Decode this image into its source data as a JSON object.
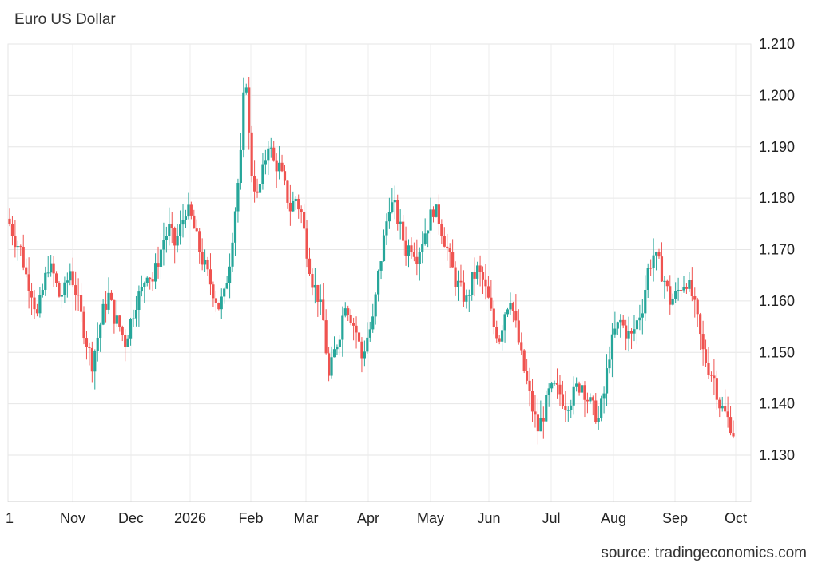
{
  "chart_data": {
    "type": "candlestick",
    "title": "Euro US Dollar",
    "source": "source: tradingeconomics.com",
    "ylim": [
      1.121,
      1.21
    ],
    "y_ticks": [
      "1.130",
      "1.140",
      "1.150",
      "1.160",
      "1.170",
      "1.180",
      "1.190",
      "1.200",
      "1.210"
    ],
    "x_ticks": [
      "1",
      "Nov",
      "Dec",
      "2026",
      "Feb",
      "Mar",
      "Apr",
      "May",
      "Jun",
      "Jul",
      "Aug",
      "Sep",
      "Oct"
    ],
    "grid": true,
    "up_color": "#26a69a",
    "down_color": "#ef5350",
    "close_path": [
      [
        0,
        1.175
      ],
      [
        2,
        1.172
      ],
      [
        4,
        1.17
      ],
      [
        6,
        1.165
      ],
      [
        8,
        1.162
      ],
      [
        10,
        1.157
      ],
      [
        12,
        1.162
      ],
      [
        14,
        1.167
      ],
      [
        16,
        1.165
      ],
      [
        18,
        1.161
      ],
      [
        20,
        1.162
      ],
      [
        22,
        1.166
      ],
      [
        24,
        1.162
      ],
      [
        26,
        1.157
      ],
      [
        28,
        1.152
      ],
      [
        30,
        1.148
      ],
      [
        32,
        1.153
      ],
      [
        34,
        1.158
      ],
      [
        36,
        1.161
      ],
      [
        38,
        1.157
      ],
      [
        40,
        1.155
      ],
      [
        42,
        1.152
      ],
      [
        44,
        1.156
      ],
      [
        46,
        1.16
      ],
      [
        48,
        1.162
      ],
      [
        50,
        1.166
      ],
      [
        52,
        1.164
      ],
      [
        54,
        1.168
      ],
      [
        56,
        1.172
      ],
      [
        58,
        1.174
      ],
      [
        60,
        1.171
      ],
      [
        62,
        1.174
      ],
      [
        64,
        1.178
      ],
      [
        66,
        1.176
      ],
      [
        68,
        1.172
      ],
      [
        70,
        1.168
      ],
      [
        72,
        1.165
      ],
      [
        74,
        1.162
      ],
      [
        76,
        1.159
      ],
      [
        78,
        1.161
      ],
      [
        80,
        1.168
      ],
      [
        82,
        1.178
      ],
      [
        84,
        1.188
      ],
      [
        85,
        1.199
      ],
      [
        86,
        1.203
      ],
      [
        87,
        1.192
      ],
      [
        88,
        1.185
      ],
      [
        90,
        1.18
      ],
      [
        92,
        1.185
      ],
      [
        94,
        1.191
      ],
      [
        96,
        1.187
      ],
      [
        98,
        1.186
      ],
      [
        100,
        1.182
      ],
      [
        102,
        1.178
      ],
      [
        104,
        1.18
      ],
      [
        106,
        1.177
      ],
      [
        108,
        1.17
      ],
      [
        110,
        1.164
      ],
      [
        112,
        1.161
      ],
      [
        114,
        1.156
      ],
      [
        116,
        1.145
      ],
      [
        118,
        1.15
      ],
      [
        120,
        1.154
      ],
      [
        122,
        1.16
      ],
      [
        124,
        1.157
      ],
      [
        126,
        1.154
      ],
      [
        128,
        1.149
      ],
      [
        130,
        1.153
      ],
      [
        132,
        1.156
      ],
      [
        134,
        1.165
      ],
      [
        136,
        1.172
      ],
      [
        138,
        1.179
      ],
      [
        140,
        1.178
      ],
      [
        142,
        1.174
      ],
      [
        144,
        1.17
      ],
      [
        146,
        1.171
      ],
      [
        148,
        1.169
      ],
      [
        150,
        1.172
      ],
      [
        152,
        1.175
      ],
      [
        154,
        1.178
      ],
      [
        156,
        1.176
      ],
      [
        158,
        1.172
      ],
      [
        160,
        1.168
      ],
      [
        162,
        1.164
      ],
      [
        164,
        1.162
      ],
      [
        166,
        1.16
      ],
      [
        168,
        1.164
      ],
      [
        170,
        1.166
      ],
      [
        172,
        1.164
      ],
      [
        174,
        1.16
      ],
      [
        176,
        1.155
      ],
      [
        178,
        1.153
      ],
      [
        180,
        1.158
      ],
      [
        182,
        1.161
      ],
      [
        184,
        1.155
      ],
      [
        186,
        1.149
      ],
      [
        188,
        1.144
      ],
      [
        190,
        1.139
      ],
      [
        192,
        1.135
      ],
      [
        194,
        1.138
      ],
      [
        196,
        1.142
      ],
      [
        198,
        1.143
      ],
      [
        200,
        1.142
      ],
      [
        202,
        1.14
      ],
      [
        204,
        1.141
      ],
      [
        206,
        1.143
      ],
      [
        208,
        1.144
      ],
      [
        210,
        1.141
      ],
      [
        212,
        1.139
      ],
      [
        214,
        1.137
      ],
      [
        216,
        1.142
      ],
      [
        218,
        1.15
      ],
      [
        220,
        1.154
      ],
      [
        222,
        1.156
      ],
      [
        224,
        1.154
      ],
      [
        226,
        1.153
      ],
      [
        228,
        1.156
      ],
      [
        230,
        1.159
      ],
      [
        232,
        1.166
      ],
      [
        234,
        1.169
      ],
      [
        236,
        1.167
      ],
      [
        238,
        1.164
      ],
      [
        240,
        1.16
      ],
      [
        242,
        1.161
      ],
      [
        244,
        1.163
      ],
      [
        246,
        1.164
      ],
      [
        248,
        1.161
      ],
      [
        250,
        1.156
      ],
      [
        252,
        1.15
      ],
      [
        254,
        1.147
      ],
      [
        256,
        1.145
      ],
      [
        258,
        1.14
      ],
      [
        260,
        1.138
      ],
      [
        262,
        1.136
      ],
      [
        263,
        1.1345
      ]
    ]
  }
}
